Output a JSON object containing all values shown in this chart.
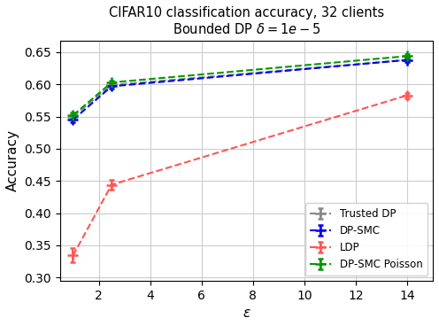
{
  "title_line1": "CIFAR10 classification accuracy, 32 clients",
  "title_line2": "Bounded DP $\\delta = 1e - 5$",
  "xlabel": "$\\varepsilon$",
  "ylabel": "Accuracy",
  "xlim": [
    0.5,
    15.0
  ],
  "ylim": [
    0.295,
    0.668
  ],
  "xticks": [
    2,
    4,
    6,
    8,
    10,
    12,
    14
  ],
  "yticks": [
    0.3,
    0.35,
    0.4,
    0.45,
    0.5,
    0.55,
    0.6,
    0.65
  ],
  "trusted_dp": {
    "x": [
      1.0,
      2.5,
      14.0
    ],
    "y": [
      0.55,
      0.599,
      0.638
    ],
    "yerr": [
      0.004,
      0.003,
      0.003
    ],
    "color": "#888888"
  },
  "dpsmc": {
    "x": [
      1.0,
      2.5,
      14.0
    ],
    "y": [
      0.545,
      0.597,
      0.638
    ],
    "yerr": [
      0.004,
      0.003,
      0.003
    ],
    "color": "#0000ee"
  },
  "ldp": {
    "x": [
      1.0,
      2.5,
      14.0
    ],
    "y": [
      0.334,
      0.444,
      0.583
    ],
    "yerr": [
      0.011,
      0.007,
      0.004
    ],
    "color": "#ff5555"
  },
  "poisson": {
    "x": [
      1.0,
      2.5,
      14.0
    ],
    "y": [
      0.552,
      0.603,
      0.644
    ],
    "yerr": [
      0.004,
      0.003,
      0.003
    ],
    "color": "#009900"
  },
  "legend_order": [
    "Trusted DP",
    "DP-SMC",
    "LDP",
    "DP-SMC Poisson"
  ],
  "background_color": "#ffffff",
  "grid_color": "#cccccc"
}
